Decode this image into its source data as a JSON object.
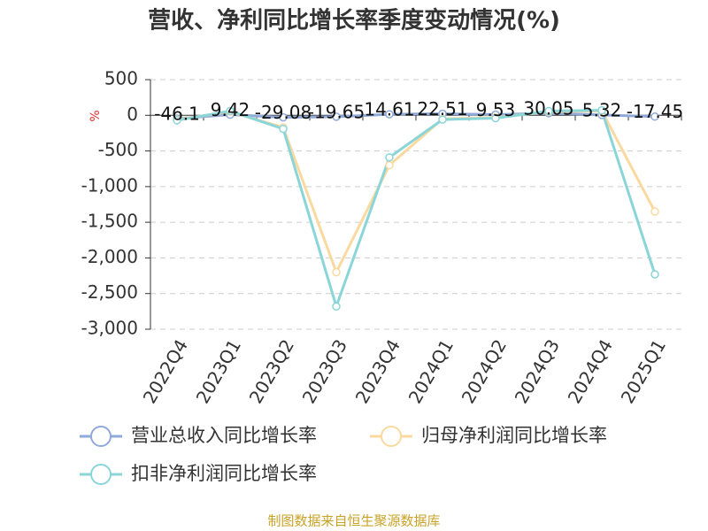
{
  "chart_data": {
    "type": "line",
    "title": "营收、净利同比增长率季度变动情况(%)",
    "y_unit": "%",
    "categories": [
      "2022Q4",
      "2023Q1",
      "2023Q2",
      "2023Q3",
      "2023Q4",
      "2024Q1",
      "2024Q2",
      "2024Q3",
      "2024Q4",
      "2025Q1"
    ],
    "series": [
      {
        "name": "营业总收入同比增长率",
        "color": "#8fa9d8",
        "values": [
          -46.1,
          9.42,
          -29.08,
          -19.65,
          14.61,
          22.51,
          9.53,
          30.05,
          5.32,
          -17.45
        ],
        "show_labels": true
      },
      {
        "name": "归母净利润同比增长率",
        "color": "#fad9a0",
        "values": [
          -60,
          50,
          -170,
          -2200,
          -700,
          -50,
          -30,
          50,
          60,
          -1350
        ]
      },
      {
        "name": "扣非净利润同比增长率",
        "color": "#8ad5d8",
        "values": [
          -70,
          60,
          -190,
          -2680,
          -590,
          -60,
          -40,
          60,
          70,
          -2230
        ]
      }
    ],
    "ylim": [
      -3000,
      500
    ],
    "yticks": [
      500,
      0,
      -500,
      {
        "value": -1000,
        "label": "-1,000"
      },
      {
        "value": -1500,
        "label": "-1,500"
      },
      {
        "value": -2000,
        "label": "-2,000"
      },
      {
        "value": -2500,
        "label": "-2,500"
      },
      {
        "value": -3000,
        "label": "-3,000"
      }
    ],
    "grid": true,
    "source": "制图数据来自恒生聚源数据库"
  }
}
